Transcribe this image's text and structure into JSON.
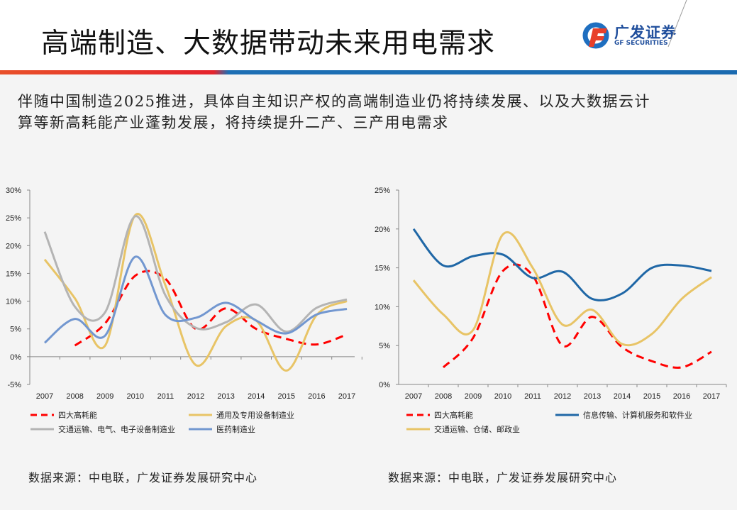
{
  "header": {
    "title": "高端制造、大数据带动未来用电需求",
    "logo_cn": "广发证券",
    "logo_en": "GF SECURITIES"
  },
  "subtitle": {
    "line1": "伴随中国制造2025推进，具体自主知识产权的高端制造业仍将持续发展、以及大数据云计",
    "line2": "算等新高耗能产业蓬勃发展，将持续提升二产、三产用电需求"
  },
  "colors": {
    "red": "#ff0000",
    "yellow": "#e8c466",
    "gray": "#b4b4b4",
    "lightblue": "#7297d0",
    "darkblue": "#1f67a6",
    "accent_blue": "#1a6ab0",
    "accent_red": "#e5242c"
  },
  "chart_data": [
    {
      "type": "line",
      "categories": [
        "2007",
        "2008",
        "2009",
        "2010",
        "2011",
        "2012",
        "2013",
        "2014",
        "2015",
        "2016",
        "2017"
      ],
      "ylim": [
        -5,
        30
      ],
      "yticks": [
        "-5%",
        "0%",
        "5%",
        "10%",
        "15%",
        "20%",
        "25%",
        "30%"
      ],
      "legend": "bottom",
      "series": [
        {
          "name": "四大高耗能",
          "color": "#ff0000",
          "dash": true,
          "values": [
            null,
            2.0,
            6.0,
            14.6,
            14.0,
            5.0,
            8.7,
            5.0,
            3.2,
            2.2,
            4.0
          ]
        },
        {
          "name": "通用及专用设备制造业",
          "color": "#e8c466",
          "values": [
            17.5,
            10.5,
            2.0,
            25.5,
            12.8,
            -1.5,
            5.5,
            6.5,
            -2.5,
            7.5,
            10.0
          ]
        },
        {
          "name": "交通运输、电气、电子设备制造业",
          "color": "#b4b4b4",
          "values": [
            22.5,
            9.0,
            8.0,
            25.3,
            11.0,
            5.2,
            6.2,
            9.4,
            4.5,
            8.8,
            10.3
          ]
        },
        {
          "name": "医药制造业",
          "color": "#7297d0",
          "values": [
            2.5,
            6.8,
            3.8,
            18.0,
            7.5,
            7.0,
            9.7,
            6.5,
            4.2,
            7.6,
            8.6
          ]
        }
      ],
      "source": "数据来源：中电联，广发证券发展研究中心"
    },
    {
      "type": "line",
      "categories": [
        "2007",
        "2008",
        "2009",
        "2010",
        "2011",
        "2012",
        "2013",
        "2014",
        "2015",
        "2016",
        "2017"
      ],
      "ylim": [
        0,
        25
      ],
      "yticks": [
        "0%",
        "5%",
        "10%",
        "15%",
        "20%",
        "25%"
      ],
      "legend": "bottom",
      "series": [
        {
          "name": "四大高耗能",
          "color": "#ff0000",
          "dash": true,
          "values": [
            null,
            2.2,
            6.0,
            14.6,
            14.0,
            5.0,
            8.7,
            4.8,
            3.0,
            2.2,
            4.2
          ]
        },
        {
          "name": "信息传输、计算机服务和软件业",
          "color": "#1f67a6",
          "values": [
            20.0,
            15.3,
            16.5,
            16.7,
            13.7,
            14.5,
            11.0,
            11.7,
            15.0,
            15.3,
            14.6
          ]
        },
        {
          "name": "交通运输、仓储、邮政业",
          "color": "#e8c466",
          "values": [
            13.4,
            9.0,
            7.0,
            19.3,
            15.0,
            7.7,
            9.6,
            5.2,
            6.5,
            11.0,
            13.8
          ]
        }
      ],
      "source": "数据来源：中电联，广发证券发展研究中心"
    }
  ]
}
